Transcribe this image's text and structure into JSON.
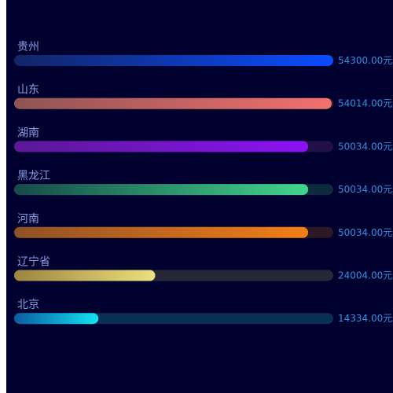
{
  "chart_data": {
    "type": "bar",
    "orientation": "horizontal",
    "categories": [
      "贵州",
      "山东",
      "湖南",
      "黑龙江",
      "河南",
      "辽宁省",
      "北京"
    ],
    "values": [
      54300.0,
      54014.0,
      50034.0,
      50034.0,
      50034.0,
      24004.0,
      14334.0
    ],
    "value_labels": [
      "54300.00元",
      "54014.00元",
      "50034.00元",
      "50034.00元",
      "50034.00元",
      "24004.00元",
      "14334.00元"
    ],
    "xlim": [
      0,
      54300
    ],
    "unit": "元",
    "grid": false,
    "legend": "none",
    "colors": {
      "background": "#01012f",
      "label": "#8a9be0",
      "value_label": "#2f8fe0",
      "bars": [
        {
          "from": "#122566",
          "to": "#0a4cff",
          "track": "#0b1a4a"
        },
        {
          "from": "#8f5454",
          "to": "#f3716e",
          "track": "#3a1f2a"
        },
        {
          "from": "#5b1896",
          "to": "#8c12f5",
          "track": "#221146"
        },
        {
          "from": "#174a4a",
          "to": "#41d68c",
          "track": "#0e2a3e"
        },
        {
          "from": "#8f5126",
          "to": "#f37f16",
          "track": "#2b1a26"
        },
        {
          "from": "#9b8540",
          "to": "#ede07e",
          "track": "#262838"
        },
        {
          "from": "#0c5aa2",
          "to": "#12e5f2",
          "track": "#0a2f52"
        }
      ]
    }
  }
}
